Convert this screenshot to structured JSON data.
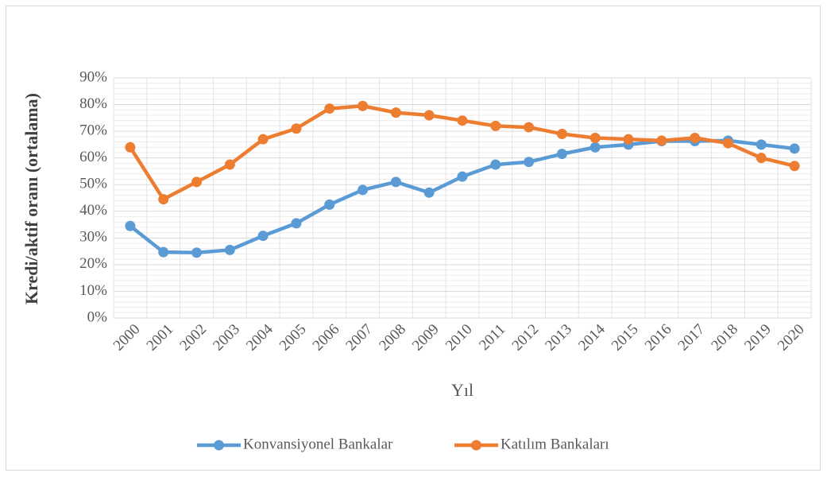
{
  "chart_data": {
    "type": "line",
    "x_label": "Yıl",
    "y_label": "Kredi/aktif oranı (ortalama)",
    "categories": [
      "2000",
      "2001",
      "2002",
      "2003",
      "2004",
      "2005",
      "2006",
      "2007",
      "2008",
      "2009",
      "2010",
      "2011",
      "2012",
      "2013",
      "2014",
      "2015",
      "2016",
      "2017",
      "2018",
      "2019",
      "2020"
    ],
    "series": [
      {
        "name": "Konvansiyonel Bankalar",
        "color": "#5b9bd5",
        "values": [
          34.5,
          24.7,
          24.5,
          25.5,
          30.8,
          35.5,
          42.5,
          48,
          51,
          47,
          53,
          57.5,
          58.5,
          61.5,
          64,
          65,
          66.3,
          66.3,
          66.5,
          65,
          63.5
        ]
      },
      {
        "name": "Katılım Bankaları",
        "color": "#ed7d31",
        "values": [
          64,
          44.5,
          51,
          57.5,
          67,
          71,
          78.5,
          79.5,
          77,
          76,
          74,
          72,
          71.5,
          69,
          67.5,
          67,
          66.5,
          67.5,
          65.5,
          60,
          57
        ]
      }
    ],
    "ylim": [
      0,
      90
    ],
    "yticks": [
      {
        "value": 0,
        "label": "0%"
      },
      {
        "value": 10,
        "label": "10%"
      },
      {
        "value": 20,
        "label": "20%"
      },
      {
        "value": 30,
        "label": "30%"
      },
      {
        "value": 40,
        "label": "40%"
      },
      {
        "value": 50,
        "label": "50%"
      },
      {
        "value": 60,
        "label": "60%"
      },
      {
        "value": 70,
        "label": "70%"
      },
      {
        "value": 80,
        "label": "80%"
      },
      {
        "value": 90,
        "label": "90%"
      }
    ],
    "grid": true,
    "legend": "bottom"
  }
}
